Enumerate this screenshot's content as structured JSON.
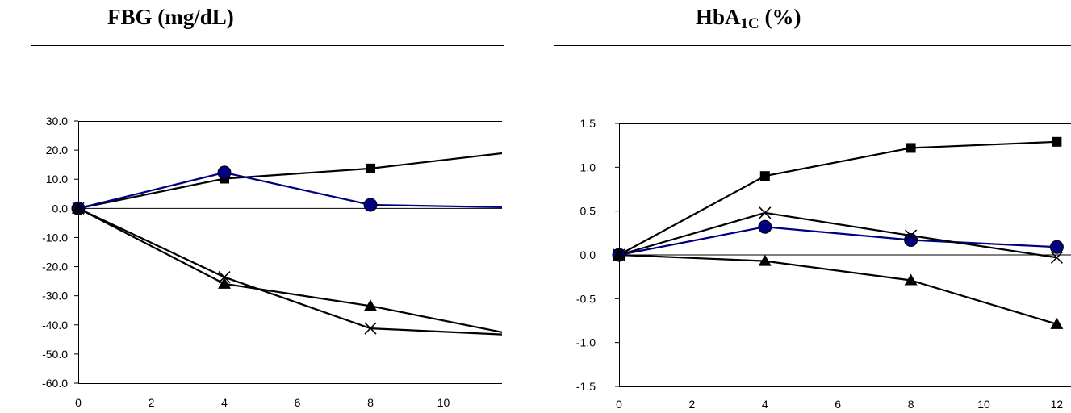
{
  "titles": {
    "fbg": "FBG (mg/dL)",
    "hba1c_main": "HbA",
    "hba1c_sub": "1C",
    "hba1c_unit": " (%)"
  },
  "colors": {
    "black": "#000000",
    "navy": "#000080"
  },
  "chart_data": [
    {
      "type": "line",
      "title": "FBG (mg/dL)",
      "xlabel": "",
      "ylabel": "",
      "ylim": [
        -60,
        30
      ],
      "xlim": [
        0,
        12
      ],
      "x_ticks": [
        "0",
        "2",
        "4",
        "6",
        "8",
        "10"
      ],
      "y_ticks": [
        "30.0",
        "20.0",
        "10.0",
        "0.0",
        "-10.0",
        "-20.0",
        "-30.0",
        "-40.0",
        "-50.0",
        "-60.0"
      ],
      "grid": false,
      "series": [
        {
          "marker": "square",
          "color": "#000000",
          "x": [
            0,
            4,
            8,
            12
          ],
          "y": [
            0,
            10.2,
            13.7,
            19.5
          ]
        },
        {
          "marker": "circle",
          "color": "#000080",
          "x": [
            0,
            4,
            8,
            12
          ],
          "y": [
            0,
            12.3,
            1.2,
            0.3
          ]
        },
        {
          "marker": "triangle",
          "color": "#000000",
          "x": [
            0,
            4,
            8,
            12
          ],
          "y": [
            0,
            -25.9,
            -33.5,
            -43.5
          ]
        },
        {
          "marker": "x",
          "color": "#000000",
          "x": [
            0,
            4,
            8,
            12
          ],
          "y": [
            0,
            -23.6,
            -41.2,
            -43.5
          ]
        }
      ]
    },
    {
      "type": "line",
      "title": "HbA1C (%)",
      "xlabel": "",
      "ylabel": "",
      "ylim": [
        -1.5,
        1.5
      ],
      "xlim": [
        0,
        12
      ],
      "x_ticks": [
        "0",
        "2",
        "4",
        "6",
        "8",
        "10",
        "12"
      ],
      "y_ticks": [
        "1.5",
        "1.0",
        "0.5",
        "0.0",
        "-0.5",
        "-1.0",
        "-1.5"
      ],
      "grid": false,
      "series": [
        {
          "marker": "square",
          "color": "#000000",
          "x": [
            0,
            4,
            8,
            12
          ],
          "y": [
            0,
            0.9,
            1.22,
            1.29
          ]
        },
        {
          "marker": "circle",
          "color": "#000080",
          "x": [
            0,
            4,
            8,
            12
          ],
          "y": [
            0,
            0.32,
            0.17,
            0.09
          ]
        },
        {
          "marker": "triangle",
          "color": "#000000",
          "x": [
            0,
            4,
            8,
            12
          ],
          "y": [
            0,
            -0.07,
            -0.29,
            -0.79
          ]
        },
        {
          "marker": "x",
          "color": "#000000",
          "x": [
            0,
            4,
            8,
            12
          ],
          "y": [
            0,
            0.48,
            0.22,
            -0.03
          ]
        }
      ]
    }
  ]
}
